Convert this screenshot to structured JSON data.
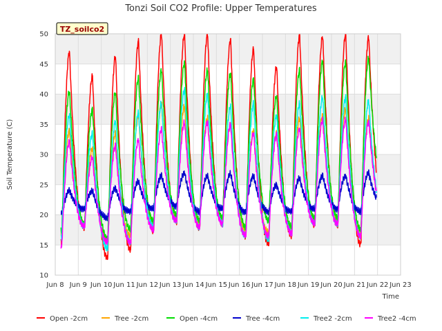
{
  "chart_data": {
    "type": "line",
    "title": "Tonzi Soil CO2 Profile: Upper Temperatures",
    "xlabel": "Time",
    "ylabel": "Soil Temperature (C)",
    "station_label": "TZ_soilco2",
    "xlim": [
      8,
      23
    ],
    "ylim": [
      10,
      50
    ],
    "x_ticks": [
      {
        "x": 8,
        "label": "Jun 8"
      },
      {
        "x": 9,
        "label": "Jun 9"
      },
      {
        "x": 10,
        "label": "Jun 10"
      },
      {
        "x": 11,
        "label": "Jun 11"
      },
      {
        "x": 12,
        "label": "Jun 12"
      },
      {
        "x": 13,
        "label": "Jun 13"
      },
      {
        "x": 14,
        "label": "Jun 14"
      },
      {
        "x": 15,
        "label": "Jun 15"
      },
      {
        "x": 16,
        "label": "Jun 16"
      },
      {
        "x": 17,
        "label": "Jun 17"
      },
      {
        "x": 18,
        "label": "Jun 18"
      },
      {
        "x": 19,
        "label": "Jun 19"
      },
      {
        "x": 20,
        "label": "Jun 20"
      },
      {
        "x": 21,
        "label": "Jun 21"
      },
      {
        "x": 22,
        "label": "Jun 22"
      },
      {
        "x": 23,
        "label": "Jun 23"
      }
    ],
    "y_ticks": [
      10,
      15,
      20,
      25,
      30,
      35,
      40,
      45,
      50
    ],
    "grid": true,
    "legend_position": "bottom",
    "x_range_data": [
      8.25,
      21.95
    ],
    "series": [
      {
        "name": "Open -2cm",
        "color": "#ff0000",
        "mins": [
          15.2,
          17.8,
          12.8,
          14.2,
          17.3,
          18.8,
          17.8,
          18.5,
          16.3,
          15.1,
          16.5,
          18.3,
          18.2,
          15.1,
          21
        ],
        "maxs": [
          47.0,
          43.0,
          46.3,
          48.8,
          50.0,
          50.0,
          50.0,
          49.0,
          47.5,
          44.6,
          49.8,
          49.6,
          50.0,
          49.5
        ]
      },
      {
        "name": "Tree -2cm",
        "color": "#ffa500",
        "mins": [
          16.5,
          18.5,
          15.5,
          16.5,
          18.5,
          19.5,
          18.5,
          19.0,
          17.5,
          17.0,
          17.5,
          19.0,
          19.0,
          17.0,
          20.5
        ],
        "maxs": [
          34.0,
          31.0,
          33.5,
          36.5,
          38.5,
          38.0,
          36.0,
          35.0,
          34.0,
          33.5,
          36.0,
          36.5,
          37.5,
          36.0
        ]
      },
      {
        "name": "Open -4cm",
        "color": "#00dd00",
        "mins": [
          17.0,
          18.5,
          16.0,
          17.5,
          19.0,
          20.0,
          19.0,
          19.5,
          18.0,
          19.0,
          18.0,
          19.5,
          19.5,
          17.5,
          25.0
        ],
        "maxs": [
          40.5,
          37.5,
          40.3,
          42.7,
          44.0,
          45.2,
          44.0,
          43.5,
          42.5,
          39.7,
          44.0,
          45.5,
          45.3,
          46.0
        ]
      },
      {
        "name": "Tree -4cm",
        "color": "#0000cc",
        "mins": [
          20.0,
          21.0,
          19.5,
          20.5,
          21.0,
          21.5,
          20.5,
          21.0,
          20.5,
          20.5,
          20.5,
          21.0,
          21.0,
          20.5,
          21.5
        ],
        "maxs": [
          24.0,
          24.0,
          24.5,
          25.5,
          26.5,
          27.0,
          26.5,
          26.8,
          26.5,
          25.0,
          26.0,
          26.5,
          26.5,
          27.0
        ]
      },
      {
        "name": "Tree2 -2cm",
        "color": "#00eeee",
        "mins": [
          16.2,
          18.0,
          14.5,
          15.5,
          18.0,
          19.0,
          18.0,
          18.5,
          16.5,
          16.0,
          17.0,
          18.5,
          18.5,
          16.5,
          20.0
        ],
        "maxs": [
          36.5,
          33.5,
          35.5,
          37.0,
          38.5,
          40.8,
          40.0,
          38.0,
          38.5,
          36.5,
          38.5,
          39.5,
          39.5,
          39.0
        ]
      },
      {
        "name": "Tree2 -4cm",
        "color": "#ff00ff",
        "mins": [
          14.5,
          18.0,
          15.5,
          15.5,
          17.5,
          19.0,
          18.0,
          18.5,
          16.5,
          16.5,
          17.0,
          18.5,
          18.5,
          16.5,
          20.5
        ],
        "maxs": [
          32.2,
          29.5,
          31.5,
          32.5,
          34.2,
          35.3,
          35.5,
          35.0,
          33.5,
          33.3,
          34.3,
          35.7,
          35.8,
          35.5
        ]
      }
    ]
  }
}
